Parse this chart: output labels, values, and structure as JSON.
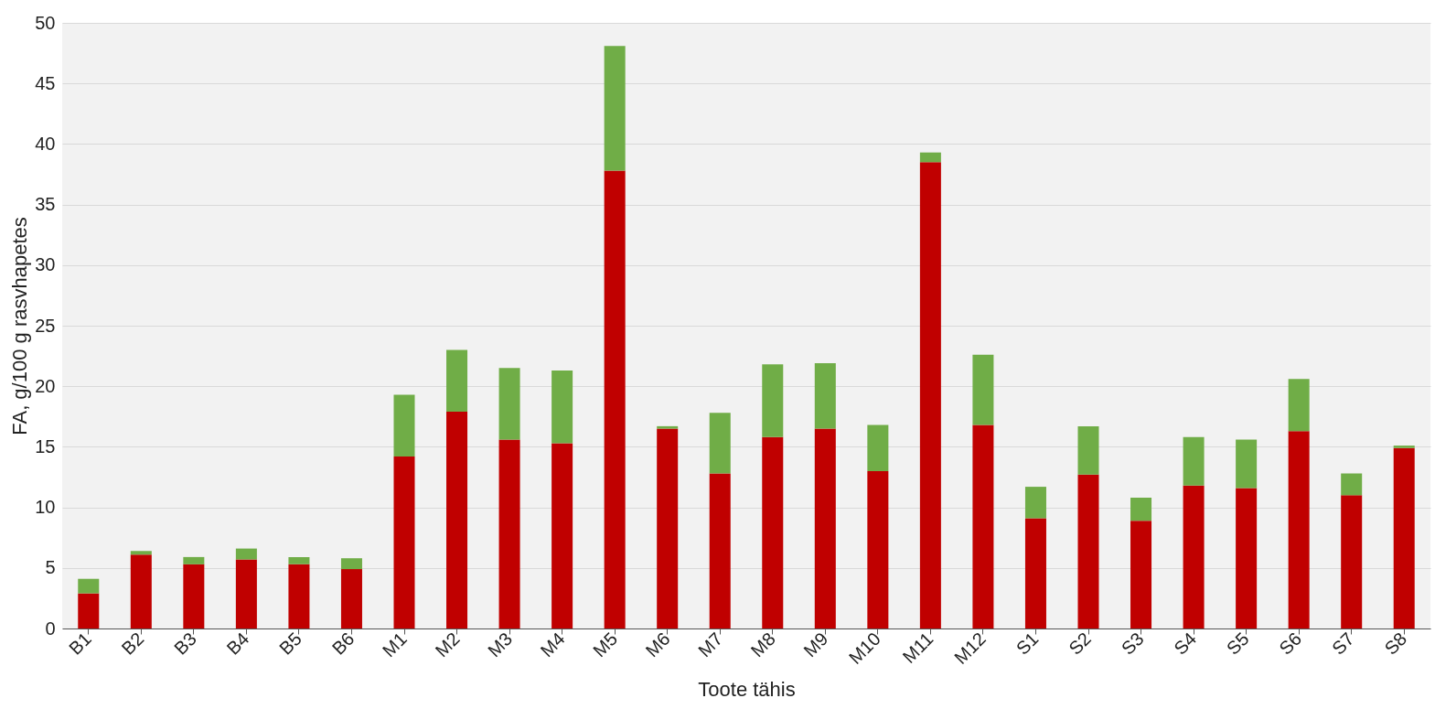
{
  "chart_data": {
    "type": "bar",
    "stacked": true,
    "xlabel": "Toote tähis",
    "ylabel": "FA, g/100 g rasvhapetes",
    "categories": [
      "B1",
      "B2",
      "B3",
      "B4",
      "B5",
      "B6",
      "M1",
      "M2",
      "M3",
      "M4",
      "M5",
      "M6",
      "M7",
      "M8",
      "M9",
      "M10",
      "M11",
      "M12",
      "S1",
      "S2",
      "S3",
      "S4",
      "S5",
      "S6",
      "S7",
      "S8"
    ],
    "series": [
      {
        "color": "#c00000",
        "values": [
          2.9,
          6.1,
          5.3,
          5.7,
          5.3,
          4.9,
          14.2,
          17.9,
          15.6,
          15.3,
          37.8,
          16.5,
          12.8,
          15.8,
          16.5,
          13.0,
          38.5,
          16.8,
          9.1,
          12.7,
          8.9,
          11.8,
          11.6,
          16.3,
          11.0,
          14.9
        ]
      },
      {
        "color": "#70ad47",
        "values": [
          1.2,
          0.3,
          0.6,
          0.9,
          0.6,
          0.9,
          5.1,
          5.1,
          5.9,
          6.0,
          10.3,
          0.2,
          5.0,
          6.0,
          5.4,
          3.8,
          0.8,
          5.8,
          2.6,
          4.0,
          1.9,
          4.0,
          4.0,
          4.3,
          1.8,
          0.2
        ]
      }
    ],
    "ylim": [
      0,
      50
    ],
    "yticks": [
      0,
      5,
      10,
      15,
      20,
      25,
      30,
      35,
      40,
      45,
      50
    ],
    "grid": "y",
    "legend": false
  }
}
